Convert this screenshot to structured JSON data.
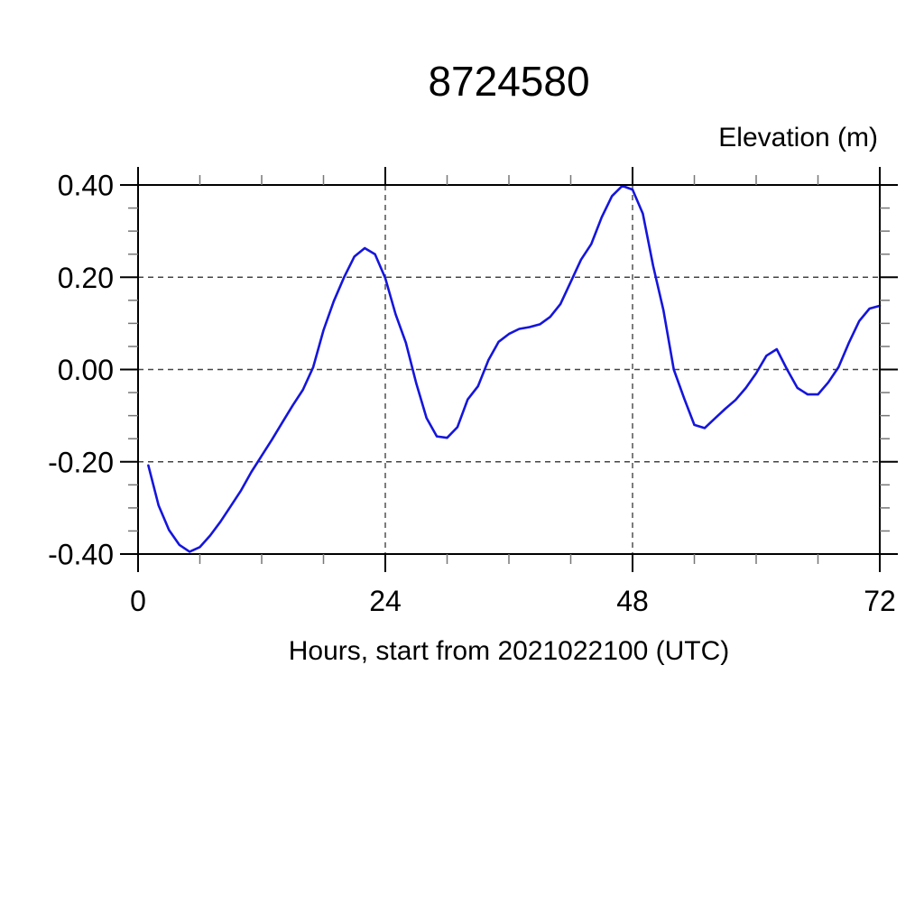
{
  "chart": {
    "title": "8724580",
    "ylabel": "Elevation (m)",
    "xlabel": "Hours, start from 2021022100 (UTC)"
  },
  "chart_data": {
    "type": "line",
    "title": "8724580",
    "xlabel": "Hours, start from 2021022100 (UTC)",
    "ylabel": "Elevation (m)",
    "xlim": [
      0,
      72
    ],
    "ylim": [
      -0.4,
      0.4
    ],
    "x_major_ticks": [
      0,
      24,
      48,
      72
    ],
    "x_minor_step": 6,
    "y_major_ticks": [
      0.4,
      0.2,
      0.0,
      -0.2,
      -0.4
    ],
    "y_minor_step": 0.05,
    "x_gridlines": [
      24,
      48
    ],
    "y_gridlines": [
      0.4,
      0.2,
      0.0,
      -0.2,
      -0.4
    ],
    "grid_style": "dashed",
    "legend": "none",
    "colors": {
      "line": "#1515dd",
      "frame": "#000000",
      "grid": "#444444",
      "minor_tick": "#777777",
      "major_tick": "#000000"
    },
    "series": [
      {
        "name": "elevation",
        "color": "#1515dd",
        "x": [
          1,
          2,
          3,
          4,
          5,
          6,
          7,
          8,
          9,
          10,
          11,
          12,
          13,
          14,
          15,
          16,
          17,
          18,
          19,
          20,
          21,
          22,
          23,
          24,
          25,
          26,
          27,
          28,
          29,
          30,
          31,
          32,
          33,
          34,
          35,
          36,
          37,
          38,
          39,
          40,
          41,
          42,
          43,
          44,
          45,
          46,
          47,
          48,
          49,
          50,
          51,
          52,
          53,
          54,
          55,
          56,
          57,
          58,
          59,
          60,
          61,
          62,
          63,
          64,
          65,
          66,
          67,
          68,
          69,
          70,
          71,
          72
        ],
        "y": [
          -0.208,
          -0.295,
          -0.348,
          -0.38,
          -0.395,
          -0.385,
          -0.36,
          -0.33,
          -0.296,
          -0.262,
          -0.222,
          -0.187,
          -0.152,
          -0.115,
          -0.078,
          -0.044,
          0.005,
          0.085,
          0.148,
          0.2,
          0.245,
          0.263,
          0.25,
          0.198,
          0.12,
          0.058,
          -0.03,
          -0.105,
          -0.145,
          -0.148,
          -0.125,
          -0.065,
          -0.036,
          0.02,
          0.06,
          0.077,
          0.088,
          0.092,
          0.098,
          0.114,
          0.142,
          0.19,
          0.238,
          0.272,
          0.33,
          0.376,
          0.398,
          0.39,
          0.338,
          0.225,
          0.128,
          0.0,
          -0.062,
          -0.12,
          -0.127,
          -0.106,
          -0.085,
          -0.066,
          -0.04,
          -0.008,
          0.03,
          0.044,
          0.0,
          -0.04,
          -0.054,
          -0.054,
          -0.028,
          0.005,
          0.058,
          0.105,
          0.132,
          0.138
        ]
      }
    ]
  }
}
